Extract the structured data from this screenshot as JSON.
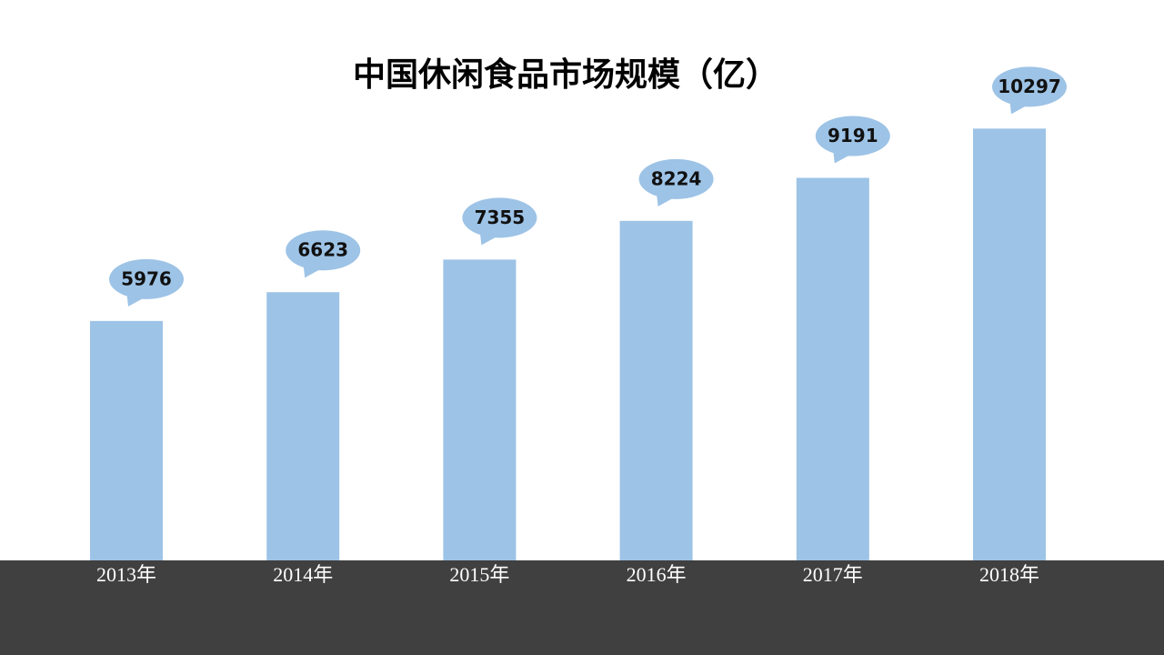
{
  "chart_data": {
    "type": "bar",
    "title": "中国休闲食品市场规模（亿）",
    "categories": [
      "2013年",
      "2014年",
      "2015年",
      "2016年",
      "2017年",
      "2018年"
    ],
    "values": [
      5976,
      6623,
      7355,
      8224,
      9191,
      10297
    ],
    "color": "#9dc3e6",
    "ylim": [
      600,
      12000
    ]
  }
}
